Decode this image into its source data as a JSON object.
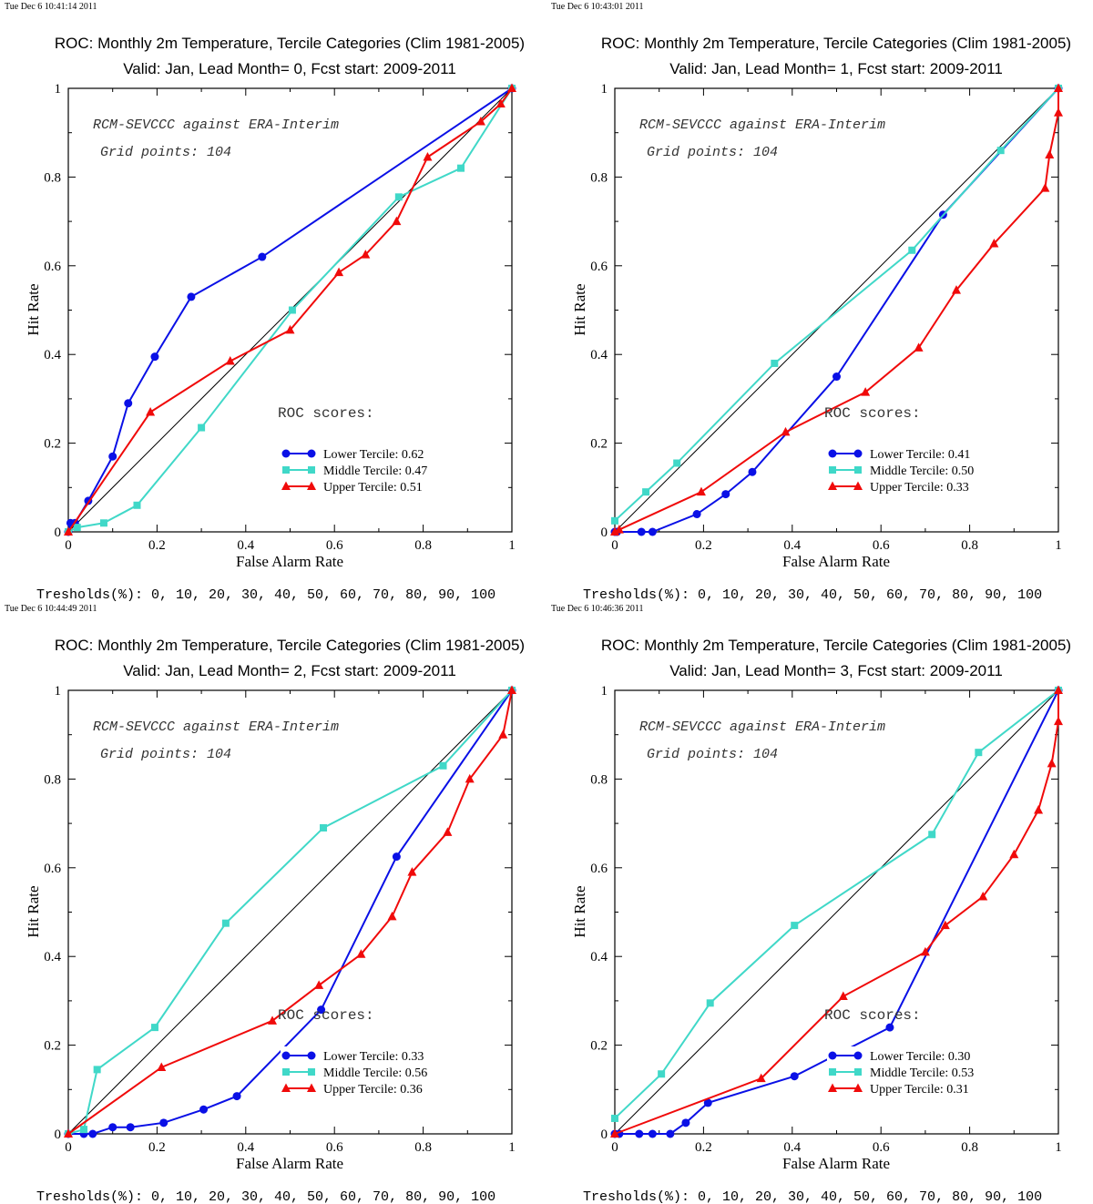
{
  "colors": {
    "lower": "#0a10e6",
    "middle": "#40d8c8",
    "upper": "#f00a0a",
    "diag": "#000000"
  },
  "chart_data": [
    {
      "type": "line",
      "timestamp": "Tue Dec  6 10:41:14 2011",
      "title": "ROC: Monthly 2m Temperature, Tercile Categories (Clim 1981-2005)",
      "subtitle": "Valid: Jan, Lead Month= 0, Fcst start: 2009-2011",
      "xlabel": "False Alarm Rate",
      "ylabel": "Hit Rate",
      "xlim": [
        0,
        1
      ],
      "ylim": [
        0,
        1
      ],
      "xticks": [
        "0",
        "0.2",
        "0.4",
        "0.6",
        "0.8",
        "1"
      ],
      "yticks": [
        "0",
        "0.2",
        "0.4",
        "0.6",
        "0.8",
        "1"
      ],
      "annotation1": "RCM-SEVCCC against ERA-Interim",
      "annotation2": "Grid points:  104",
      "scores_title": "ROC scores:",
      "thresholds": "Tresholds(%): 0, 10, 20, 30, 40, 50, 60, 70, 80, 90, 100",
      "grid": false,
      "series": [
        {
          "name": "Lower Tercile: 0.62",
          "color_key": "lower",
          "marker": "circle",
          "x": [
            0,
            0.005,
            0.015,
            0.045,
            0.1,
            0.135,
            0.195,
            0.277,
            0.437,
            1
          ],
          "y": [
            0,
            0.02,
            0.02,
            0.07,
            0.17,
            0.29,
            0.395,
            0.53,
            0.62,
            1
          ]
        },
        {
          "name": "Middle Tercile: 0.47",
          "color_key": "middle",
          "marker": "square",
          "x": [
            0,
            0.02,
            0.08,
            0.155,
            0.3,
            0.505,
            0.745,
            0.885,
            1
          ],
          "y": [
            0,
            0.01,
            0.02,
            0.06,
            0.235,
            0.5,
            0.755,
            0.82,
            1
          ]
        },
        {
          "name": "Upper Tercile: 0.51",
          "color_key": "upper",
          "marker": "triangle",
          "x": [
            0,
            0.185,
            0.365,
            0.5,
            0.61,
            0.67,
            0.74,
            0.81,
            0.93,
            0.975,
            1
          ],
          "y": [
            0,
            0.27,
            0.385,
            0.455,
            0.585,
            0.625,
            0.7,
            0.845,
            0.925,
            0.965,
            1
          ]
        }
      ]
    },
    {
      "type": "line",
      "timestamp": "Tue Dec  6 10:43:01 2011",
      "title": "ROC: Monthly 2m Temperature, Tercile Categories (Clim 1981-2005)",
      "subtitle": "Valid: Jan, Lead Month= 1, Fcst start: 2009-2011",
      "xlabel": "False Alarm Rate",
      "ylabel": "Hit Rate",
      "xlim": [
        0,
        1
      ],
      "ylim": [
        0,
        1
      ],
      "xticks": [
        "0",
        "0.2",
        "0.4",
        "0.6",
        "0.8",
        "1"
      ],
      "yticks": [
        "0",
        "0.2",
        "0.4",
        "0.6",
        "0.8",
        "1"
      ],
      "annotation1": "RCM-SEVCCC against ERA-Interim",
      "annotation2": "Grid points:  104",
      "scores_title": "ROC scores:",
      "thresholds": "Tresholds(%): 0, 10, 20, 30, 40, 50, 60, 70, 80, 90, 100",
      "grid": false,
      "series": [
        {
          "name": "Lower Tercile: 0.41",
          "color_key": "lower",
          "marker": "circle",
          "x": [
            0,
            0.005,
            0.06,
            0.085,
            0.185,
            0.25,
            0.31,
            0.5,
            0.74,
            1
          ],
          "y": [
            0,
            0,
            0,
            0,
            0.04,
            0.085,
            0.135,
            0.35,
            0.715,
            1
          ]
        },
        {
          "name": "Middle Tercile: 0.50",
          "color_key": "middle",
          "marker": "square",
          "x": [
            0,
            0.07,
            0.14,
            0.36,
            0.67,
            0.87,
            1
          ],
          "y": [
            0.025,
            0.09,
            0.155,
            0.38,
            0.635,
            0.86,
            1
          ]
        },
        {
          "name": "Upper Tercile: 0.33",
          "color_key": "upper",
          "marker": "triangle",
          "x": [
            0,
            0.01,
            0.195,
            0.385,
            0.565,
            0.685,
            0.77,
            0.855,
            0.97,
            0.98,
            1,
            1
          ],
          "y": [
            0,
            0.005,
            0.09,
            0.225,
            0.315,
            0.415,
            0.545,
            0.65,
            0.775,
            0.85,
            0.945,
            1
          ]
        }
      ]
    },
    {
      "type": "line",
      "timestamp": "Tue Dec  6 10:44:49 2011",
      "title": "ROC: Monthly 2m Temperature, Tercile Categories (Clim 1981-2005)",
      "subtitle": "Valid: Jan, Lead Month= 2, Fcst start: 2009-2011",
      "xlabel": "False Alarm Rate",
      "ylabel": "Hit Rate",
      "xlim": [
        0,
        1
      ],
      "ylim": [
        0,
        1
      ],
      "xticks": [
        "0",
        "0.2",
        "0.4",
        "0.6",
        "0.8",
        "1"
      ],
      "yticks": [
        "0",
        "0.2",
        "0.4",
        "0.6",
        "0.8",
        "1"
      ],
      "annotation1": "RCM-SEVCCC against ERA-Interim",
      "annotation2": "Grid points:  104",
      "scores_title": "ROC scores:",
      "thresholds": "Tresholds(%): 0, 10, 20, 30, 40, 50, 60, 70, 80, 90, 100",
      "grid": false,
      "series": [
        {
          "name": "Lower Tercile: 0.33",
          "color_key": "lower",
          "marker": "circle",
          "x": [
            0,
            0.035,
            0.055,
            0.1,
            0.14,
            0.215,
            0.305,
            0.38,
            0.57,
            0.74,
            1
          ],
          "y": [
            0,
            0,
            0,
            0.015,
            0.015,
            0.025,
            0.055,
            0.085,
            0.28,
            0.625,
            1
          ]
        },
        {
          "name": "Middle Tercile: 0.56",
          "color_key": "middle",
          "marker": "square",
          "x": [
            0,
            0.035,
            0.065,
            0.195,
            0.355,
            0.575,
            0.845,
            1
          ],
          "y": [
            0,
            0.01,
            0.145,
            0.24,
            0.475,
            0.69,
            0.83,
            1
          ]
        },
        {
          "name": "Upper Tercile: 0.36",
          "color_key": "upper",
          "marker": "triangle",
          "x": [
            0,
            0.21,
            0.46,
            0.565,
            0.66,
            0.73,
            0.775,
            0.855,
            0.905,
            0.98,
            1
          ],
          "y": [
            0,
            0.15,
            0.255,
            0.335,
            0.405,
            0.49,
            0.59,
            0.68,
            0.8,
            0.9,
            1
          ]
        }
      ]
    },
    {
      "type": "line",
      "timestamp": "Tue Dec  6 10:46:36 2011",
      "title": "ROC: Monthly 2m Temperature, Tercile Categories (Clim 1981-2005)",
      "subtitle": "Valid: Jan, Lead Month= 3, Fcst start: 2009-2011",
      "xlabel": "False Alarm Rate",
      "ylabel": "Hit Rate",
      "xlim": [
        0,
        1
      ],
      "ylim": [
        0,
        1
      ],
      "xticks": [
        "0",
        "0.2",
        "0.4",
        "0.6",
        "0.8",
        "1"
      ],
      "yticks": [
        "0",
        "0.2",
        "0.4",
        "0.6",
        "0.8",
        "1"
      ],
      "annotation1": "RCM-SEVCCC against ERA-Interim",
      "annotation2": "Grid points:  104",
      "scores_title": "ROC scores:",
      "thresholds": "Tresholds(%): 0, 10, 20, 30, 40, 50, 60, 70, 80, 90, 100",
      "grid": false,
      "series": [
        {
          "name": "Lower Tercile: 0.30",
          "color_key": "lower",
          "marker": "circle",
          "x": [
            0,
            0.01,
            0.055,
            0.085,
            0.125,
            0.16,
            0.21,
            0.405,
            0.62,
            1
          ],
          "y": [
            0,
            0,
            0,
            0,
            0,
            0.025,
            0.07,
            0.13,
            0.24,
            1
          ]
        },
        {
          "name": "Middle Tercile: 0.53",
          "color_key": "middle",
          "marker": "square",
          "x": [
            0,
            0.105,
            0.215,
            0.405,
            0.715,
            0.82,
            1
          ],
          "y": [
            0.035,
            0.135,
            0.295,
            0.47,
            0.675,
            0.86,
            1
          ]
        },
        {
          "name": "Upper Tercile: 0.31",
          "color_key": "upper",
          "marker": "triangle",
          "x": [
            0,
            0.33,
            0.515,
            0.7,
            0.745,
            0.83,
            0.9,
            0.955,
            0.985,
            1,
            1
          ],
          "y": [
            0,
            0.125,
            0.31,
            0.41,
            0.47,
            0.535,
            0.63,
            0.73,
            0.835,
            0.93,
            1
          ]
        }
      ]
    }
  ]
}
